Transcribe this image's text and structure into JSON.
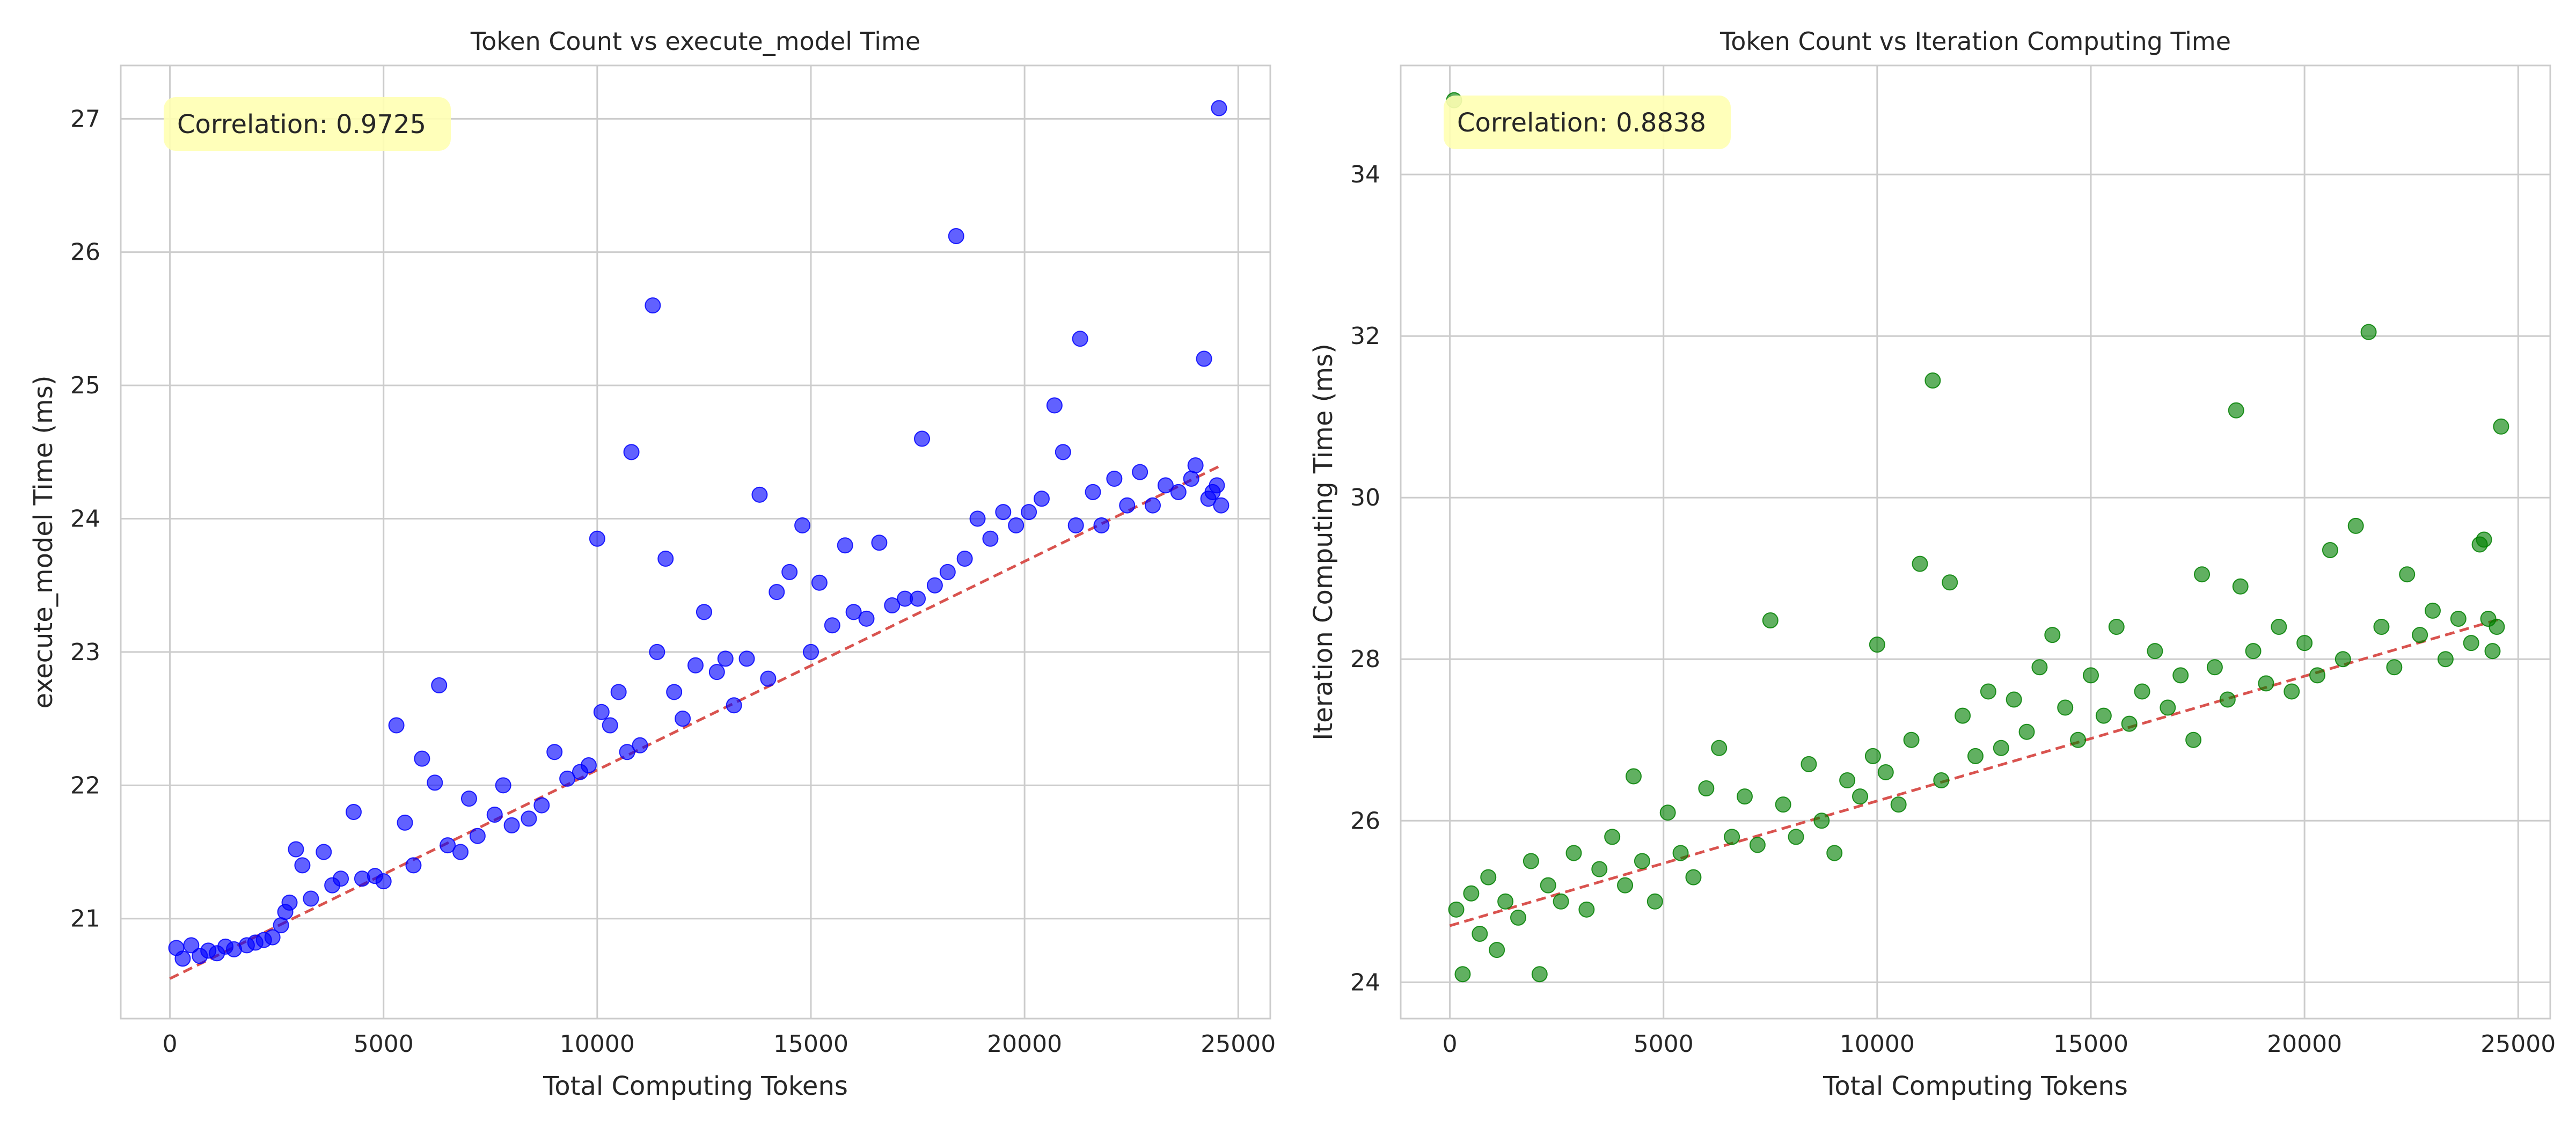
{
  "chart_data": [
    {
      "type": "scatter",
      "title": "Token Count vs execute_model Time",
      "xlabel": "Total Computing Tokens",
      "ylabel": "execute_model Time (ms)",
      "xlim": [
        -1150,
        25750
      ],
      "ylim": [
        20.25,
        27.4
      ],
      "xticks": [
        0,
        5000,
        10000,
        15000,
        20000,
        25000
      ],
      "yticks": [
        21,
        22,
        23,
        24,
        25,
        26,
        27
      ],
      "grid": true,
      "color": "#0000ff",
      "trend_color": "#d9534f",
      "annotation": "Correlation: 0.9725",
      "correlation": 0.9725,
      "trend": {
        "x": [
          0,
          24600
        ],
        "y": [
          20.55,
          24.4
        ]
      },
      "points": [
        [
          150,
          20.78
        ],
        [
          300,
          20.7
        ],
        [
          500,
          20.8
        ],
        [
          700,
          20.72
        ],
        [
          900,
          20.76
        ],
        [
          1100,
          20.74
        ],
        [
          1300,
          20.79
        ],
        [
          1500,
          20.77
        ],
        [
          1800,
          20.8
        ],
        [
          2000,
          20.82
        ],
        [
          2200,
          20.84
        ],
        [
          2400,
          20.86
        ],
        [
          2600,
          20.95
        ],
        [
          2700,
          21.05
        ],
        [
          2800,
          21.12
        ],
        [
          2950,
          21.52
        ],
        [
          3100,
          21.4
        ],
        [
          3300,
          21.15
        ],
        [
          3600,
          21.5
        ],
        [
          3800,
          21.25
        ],
        [
          4000,
          21.3
        ],
        [
          4300,
          21.8
        ],
        [
          4500,
          21.3
        ],
        [
          4800,
          21.32
        ],
        [
          5000,
          21.28
        ],
        [
          5300,
          22.45
        ],
        [
          5500,
          21.72
        ],
        [
          5700,
          21.4
        ],
        [
          5900,
          22.2
        ],
        [
          6200,
          22.02
        ],
        [
          6300,
          22.75
        ],
        [
          6500,
          21.55
        ],
        [
          6800,
          21.5
        ],
        [
          7000,
          21.9
        ],
        [
          7200,
          21.62
        ],
        [
          7600,
          21.78
        ],
        [
          7800,
          22.0
        ],
        [
          8000,
          21.7
        ],
        [
          8400,
          21.75
        ],
        [
          8700,
          21.85
        ],
        [
          9000,
          22.25
        ],
        [
          9300,
          22.05
        ],
        [
          9600,
          22.1
        ],
        [
          9800,
          22.15
        ],
        [
          10000,
          23.85
        ],
        [
          10100,
          22.55
        ],
        [
          10300,
          22.45
        ],
        [
          10500,
          22.7
        ],
        [
          10700,
          22.25
        ],
        [
          10800,
          24.5
        ],
        [
          11000,
          22.3
        ],
        [
          11300,
          25.6
        ],
        [
          11400,
          23.0
        ],
        [
          11600,
          23.7
        ],
        [
          11800,
          22.7
        ],
        [
          12000,
          22.5
        ],
        [
          12300,
          22.9
        ],
        [
          12500,
          23.3
        ],
        [
          12800,
          22.85
        ],
        [
          13000,
          22.95
        ],
        [
          13200,
          22.6
        ],
        [
          13500,
          22.95
        ],
        [
          13800,
          24.18
        ],
        [
          14000,
          22.8
        ],
        [
          14200,
          23.45
        ],
        [
          14500,
          23.6
        ],
        [
          14800,
          23.95
        ],
        [
          15000,
          23.0
        ],
        [
          15200,
          23.52
        ],
        [
          15500,
          23.2
        ],
        [
          15800,
          23.8
        ],
        [
          16000,
          23.3
        ],
        [
          16300,
          23.25
        ],
        [
          16600,
          23.82
        ],
        [
          16900,
          23.35
        ],
        [
          17200,
          23.4
        ],
        [
          17500,
          23.4
        ],
        [
          17600,
          24.6
        ],
        [
          17900,
          23.5
        ],
        [
          18200,
          23.6
        ],
        [
          18400,
          26.12
        ],
        [
          18600,
          23.7
        ],
        [
          18900,
          24.0
        ],
        [
          19200,
          23.85
        ],
        [
          19500,
          24.05
        ],
        [
          19800,
          23.95
        ],
        [
          20100,
          24.05
        ],
        [
          20400,
          24.15
        ],
        [
          20700,
          24.85
        ],
        [
          20900,
          24.5
        ],
        [
          21200,
          23.95
        ],
        [
          21300,
          25.35
        ],
        [
          21600,
          24.2
        ],
        [
          21800,
          23.95
        ],
        [
          22100,
          24.3
        ],
        [
          22400,
          24.1
        ],
        [
          22700,
          24.35
        ],
        [
          23000,
          24.1
        ],
        [
          23300,
          24.25
        ],
        [
          23600,
          24.2
        ],
        [
          23900,
          24.3
        ],
        [
          24000,
          24.4
        ],
        [
          24200,
          25.2
        ],
        [
          24300,
          24.15
        ],
        [
          24400,
          24.2
        ],
        [
          24500,
          24.25
        ],
        [
          24550,
          27.08
        ],
        [
          24600,
          24.1
        ]
      ]
    },
    {
      "type": "scatter",
      "title": "Token Count vs Iteration Computing Time",
      "xlabel": "Total Computing Tokens",
      "ylabel": "Iteration Computing Time (ms)",
      "xlim": [
        -1150,
        25750
      ],
      "ylim": [
        23.55,
        35.35
      ],
      "xticks": [
        0,
        5000,
        10000,
        15000,
        20000,
        25000
      ],
      "yticks": [
        24,
        26,
        28,
        30,
        32,
        34
      ],
      "grid": true,
      "color": "#008000",
      "trend_color": "#d9534f",
      "annotation": "Correlation: 0.8838",
      "correlation": 0.8838,
      "trend": {
        "x": [
          0,
          24600
        ],
        "y": [
          24.7,
          28.5
        ]
      },
      "points": [
        [
          100,
          34.92
        ],
        [
          150,
          24.9
        ],
        [
          300,
          24.1
        ],
        [
          500,
          25.1
        ],
        [
          700,
          24.6
        ],
        [
          900,
          25.3
        ],
        [
          1100,
          24.4
        ],
        [
          1300,
          25.0
        ],
        [
          1600,
          24.8
        ],
        [
          1900,
          25.5
        ],
        [
          2100,
          24.1
        ],
        [
          2300,
          25.2
        ],
        [
          2600,
          25.0
        ],
        [
          2900,
          25.6
        ],
        [
          3200,
          24.9
        ],
        [
          3500,
          25.4
        ],
        [
          3800,
          25.8
        ],
        [
          4100,
          25.2
        ],
        [
          4300,
          26.55
        ],
        [
          4500,
          25.5
        ],
        [
          4800,
          25.0
        ],
        [
          5100,
          26.1
        ],
        [
          5400,
          25.6
        ],
        [
          5700,
          25.3
        ],
        [
          6000,
          26.4
        ],
        [
          6300,
          26.9
        ],
        [
          6600,
          25.8
        ],
        [
          6900,
          26.3
        ],
        [
          7200,
          25.7
        ],
        [
          7500,
          28.48
        ],
        [
          7800,
          26.2
        ],
        [
          8100,
          25.8
        ],
        [
          8400,
          26.7
        ],
        [
          8700,
          26.0
        ],
        [
          9000,
          25.6
        ],
        [
          9300,
          26.5
        ],
        [
          9600,
          26.3
        ],
        [
          9900,
          26.8
        ],
        [
          10000,
          28.18
        ],
        [
          10200,
          26.6
        ],
        [
          10500,
          26.2
        ],
        [
          10800,
          27.0
        ],
        [
          11000,
          29.18
        ],
        [
          11300,
          31.45
        ],
        [
          11500,
          26.5
        ],
        [
          11700,
          28.95
        ],
        [
          12000,
          27.3
        ],
        [
          12300,
          26.8
        ],
        [
          12600,
          27.6
        ],
        [
          12900,
          26.9
        ],
        [
          13200,
          27.5
        ],
        [
          13500,
          27.1
        ],
        [
          13800,
          27.9
        ],
        [
          14100,
          28.3
        ],
        [
          14400,
          27.4
        ],
        [
          14700,
          27.0
        ],
        [
          15000,
          27.8
        ],
        [
          15300,
          27.3
        ],
        [
          15600,
          28.4
        ],
        [
          15900,
          27.2
        ],
        [
          16200,
          27.6
        ],
        [
          16500,
          28.1
        ],
        [
          16800,
          27.4
        ],
        [
          17100,
          27.8
        ],
        [
          17400,
          27.0
        ],
        [
          17600,
          29.05
        ],
        [
          17900,
          27.9
        ],
        [
          18200,
          27.5
        ],
        [
          18400,
          31.08
        ],
        [
          18500,
          28.9
        ],
        [
          18800,
          28.1
        ],
        [
          19100,
          27.7
        ],
        [
          19400,
          28.4
        ],
        [
          19700,
          27.6
        ],
        [
          20000,
          28.2
        ],
        [
          20300,
          27.8
        ],
        [
          20600,
          29.35
        ],
        [
          20900,
          28.0
        ],
        [
          21200,
          29.65
        ],
        [
          21500,
          32.05
        ],
        [
          21800,
          28.4
        ],
        [
          22100,
          27.9
        ],
        [
          22400,
          29.05
        ],
        [
          22700,
          28.3
        ],
        [
          23000,
          28.6
        ],
        [
          23300,
          28.0
        ],
        [
          23600,
          28.5
        ],
        [
          23900,
          28.2
        ],
        [
          24100,
          29.42
        ],
        [
          24200,
          29.48
        ],
        [
          24300,
          28.5
        ],
        [
          24400,
          28.1
        ],
        [
          24500,
          28.4
        ],
        [
          24600,
          30.88
        ]
      ]
    }
  ]
}
